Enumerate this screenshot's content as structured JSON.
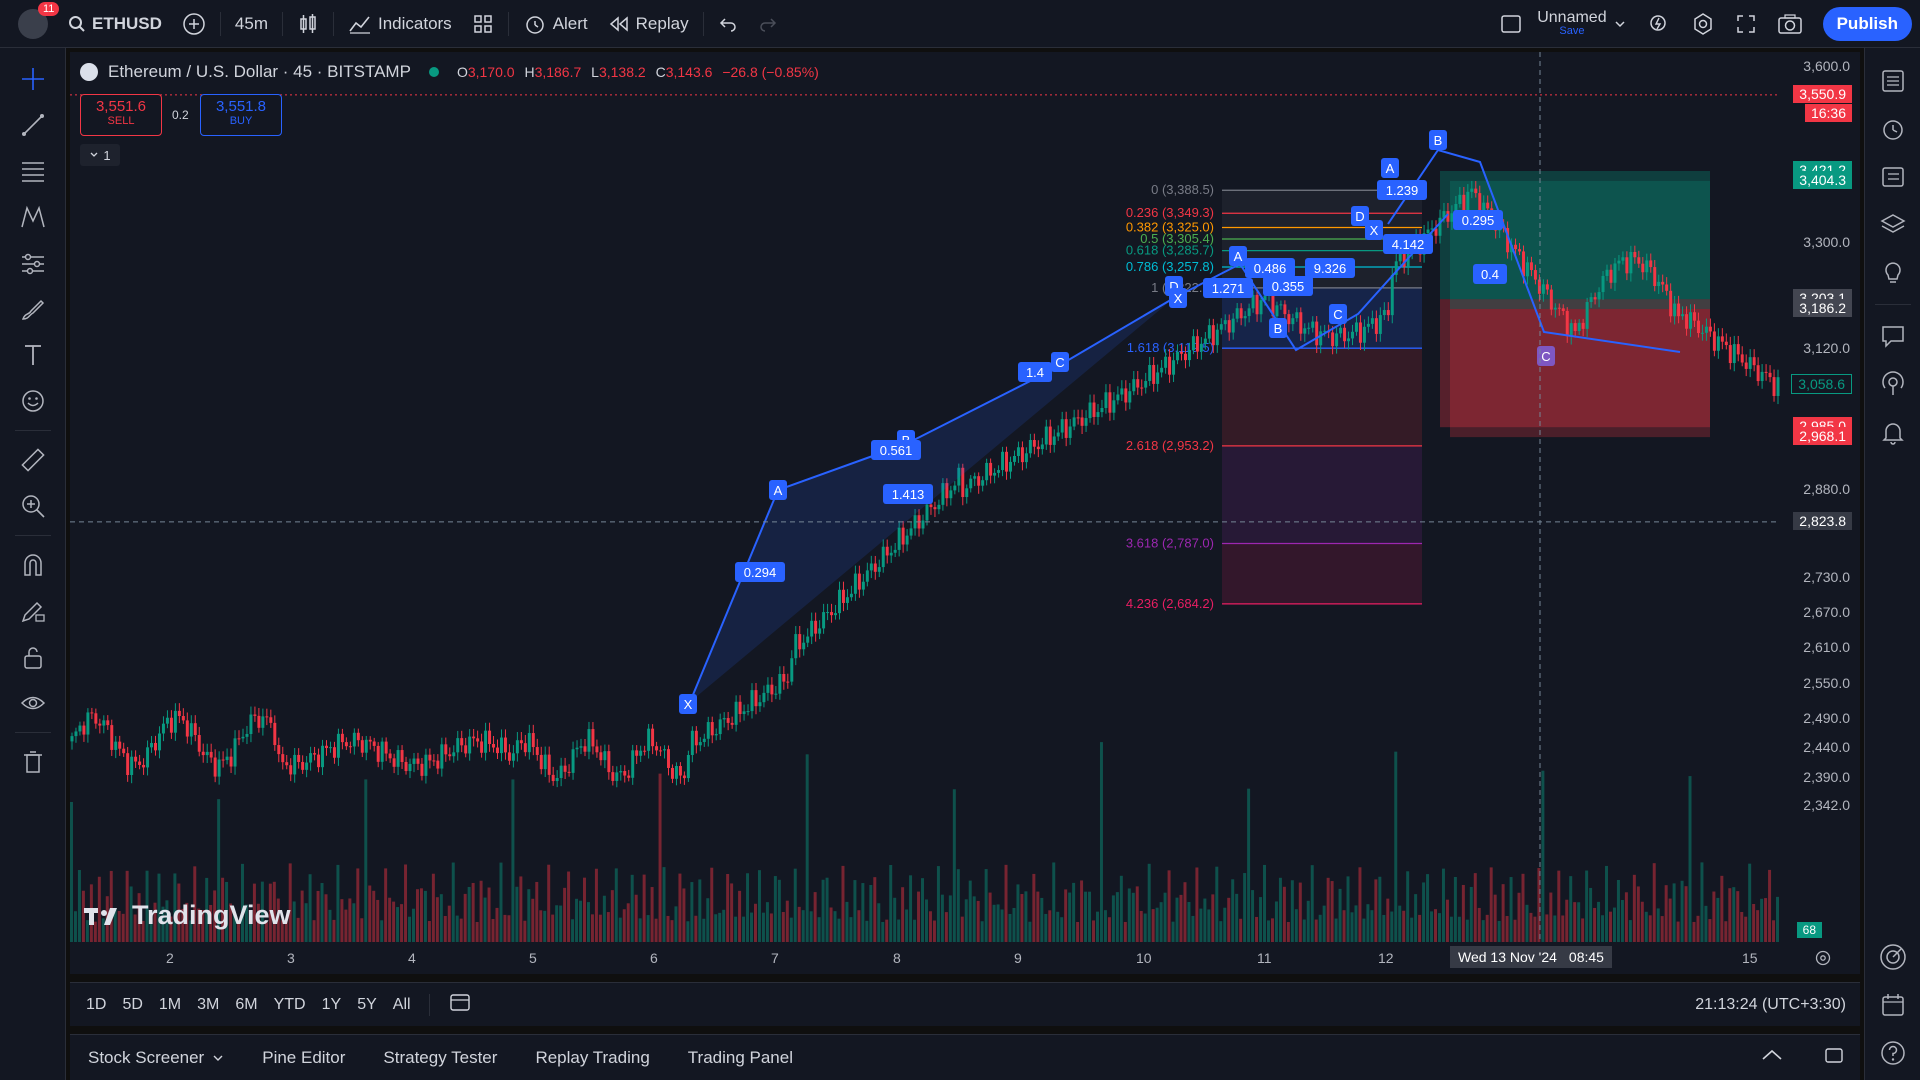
{
  "topbar": {
    "notification_count": "11",
    "symbol": "ETHUSD",
    "interval": "45m",
    "indicators": "Indicators",
    "alert": "Alert",
    "replay": "Replay",
    "layout_name": "Unnamed",
    "save": "Save",
    "publish": "Publish"
  },
  "legend": {
    "title": "Ethereum / U.S. Dollar · 45 · BITSTAMP",
    "o_label": "O",
    "o": "3,170.0",
    "h_label": "H",
    "h": "3,186.7",
    "l_label": "L",
    "l": "3,138.2",
    "c_label": "C",
    "c": "3,143.6",
    "change": "−26.8 (−0.85%)",
    "sell_price": "3,551.6",
    "sell": "SELL",
    "spread": "0.2",
    "buy_price": "3,551.8",
    "buy": "BUY",
    "collapse_count": "1"
  },
  "price_axis": {
    "labels": [
      "3,600.0",
      "3,300.0",
      "3,120.0",
      "2,880.0",
      "2,730.0",
      "2,670.0",
      "2,610.0",
      "2,550.0",
      "2,490.0",
      "2,440.0",
      "2,390.0",
      "2,342.0"
    ],
    "tags": {
      "current_price": "3,550.9",
      "countdown": "16:36",
      "tp1": "3,421.2",
      "tp2": "3,404.3",
      "entry1": "3,203.1",
      "entry2": "3,186.2",
      "last": "3,058.6",
      "sl1": "2,985.0",
      "sl2": "2,968.1",
      "crosshair": "2,823.8",
      "volume": "68"
    }
  },
  "time_axis": {
    "labels": [
      "2",
      "3",
      "4",
      "5",
      "6",
      "7",
      "8",
      "9",
      "10",
      "11",
      "12",
      "15"
    ],
    "crosshair_date": "Wed 13 Nov '24",
    "crosshair_time": "08:45"
  },
  "fib": [
    {
      "label": "0 (3,388.5)",
      "color": "#787b86"
    },
    {
      "label": "0.236 (3,349.3)",
      "color": "#f23645"
    },
    {
      "label": "0.382 (3,325.0)",
      "color": "#ff9800"
    },
    {
      "label": "0.5 (3,305.4)",
      "color": "#4caf50"
    },
    {
      "label": "0.618 (3,285.7)",
      "color": "#089981"
    },
    {
      "label": "0.786 (3,257.8)",
      "color": "#00bcd4"
    },
    {
      "label": "1 (3,222.2)",
      "color": "#787b86"
    },
    {
      "label": "1.618 (3,119.5)",
      "color": "#2962ff"
    },
    {
      "label": "2.618 (2,953.2)",
      "color": "#f23645"
    },
    {
      "label": "3.618 (2,787.0)",
      "color": "#9c27b0"
    },
    {
      "label": "4.236 (2,684.2)",
      "color": "#e91e63"
    }
  ],
  "harmonic": {
    "points": [
      "X",
      "A",
      "B",
      "C",
      "D",
      "X",
      "A",
      "B",
      "C",
      "D",
      "X",
      "A",
      "B",
      "C"
    ],
    "ratios": [
      "0.294",
      "0.561",
      "1.413",
      "1.4",
      "1.271",
      "0.486",
      "0.355",
      "9.326",
      "1.239",
      "4.142",
      "0.295",
      "0.4"
    ]
  },
  "watermark": "TradingView",
  "ranges": [
    "1D",
    "5D",
    "1M",
    "3M",
    "6M",
    "YTD",
    "1Y",
    "5Y",
    "All"
  ],
  "clock": "21:13:24 (UTC+3:30)",
  "bottom_tabs": [
    "Stock Screener",
    "Pine Editor",
    "Strategy Tester",
    "Replay Trading",
    "Trading Panel"
  ],
  "colors": {
    "up": "#089981",
    "down": "#f23645",
    "accent": "#2962ff",
    "bg": "#131722"
  }
}
